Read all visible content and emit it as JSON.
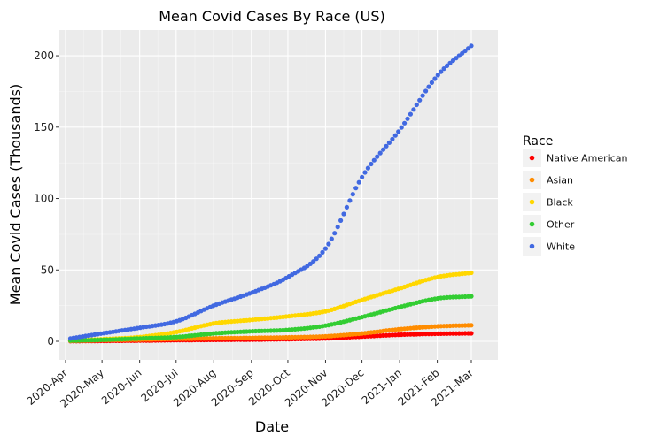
{
  "chart_data": {
    "type": "scatter",
    "title": "Mean Covid Cases By Race (US)",
    "xlabel": "Date",
    "ylabel": "Mean Covid Cases (Thousands)",
    "x_ticks": [
      "2020-Apr",
      "2020-May",
      "2020-Jun",
      "2020-Jul",
      "2020-Aug",
      "2020-Sep",
      "2020-Oct",
      "2020-Nov",
      "2020-Dec",
      "2021-Jan",
      "2021-Feb",
      "2021-Mar"
    ],
    "y_ticks": [
      0,
      50,
      100,
      150,
      200
    ],
    "ylim": [
      -13,
      218
    ],
    "grid": true,
    "legend": {
      "title": "Race",
      "position": "right"
    },
    "series": [
      {
        "name": "Native American",
        "color": "#ff0000",
        "points": [
          [
            "2020-04-05",
            0.1
          ],
          [
            "2020-05-01",
            0.3
          ],
          [
            "2020-06-01",
            0.5
          ],
          [
            "2020-07-01",
            0.8
          ],
          [
            "2020-08-01",
            1.0
          ],
          [
            "2020-09-01",
            1.2
          ],
          [
            "2020-10-01",
            1.5
          ],
          [
            "2020-11-01",
            2.0
          ],
          [
            "2020-12-01",
            3.3
          ],
          [
            "2021-01-01",
            4.6
          ],
          [
            "2021-02-01",
            5.3
          ],
          [
            "2021-03-01",
            5.6
          ]
        ]
      },
      {
        "name": "Asian",
        "color": "#ff8c00",
        "points": [
          [
            "2020-04-05",
            0.3
          ],
          [
            "2020-05-01",
            0.8
          ],
          [
            "2020-06-01",
            1.2
          ],
          [
            "2020-07-01",
            1.7
          ],
          [
            "2020-08-01",
            2.1
          ],
          [
            "2020-09-01",
            2.4
          ],
          [
            "2020-10-01",
            2.8
          ],
          [
            "2020-11-01",
            3.5
          ],
          [
            "2020-12-01",
            5.5
          ],
          [
            "2021-01-01",
            8.5
          ],
          [
            "2021-02-01",
            10.5
          ],
          [
            "2021-03-01",
            11.3
          ]
        ]
      },
      {
        "name": "Black",
        "color": "#ffd700",
        "points": [
          [
            "2020-04-05",
            0.5
          ],
          [
            "2020-05-01",
            1.5
          ],
          [
            "2020-06-01",
            3.0
          ],
          [
            "2020-07-01",
            6.5
          ],
          [
            "2020-08-01",
            12.5
          ],
          [
            "2020-09-01",
            15.0
          ],
          [
            "2020-10-01",
            17.5
          ],
          [
            "2020-11-01",
            21.0
          ],
          [
            "2020-12-01",
            29.0
          ],
          [
            "2021-01-01",
            37.0
          ],
          [
            "2021-02-01",
            45.0
          ],
          [
            "2021-03-01",
            48.0
          ]
        ]
      },
      {
        "name": "Other",
        "color": "#32cd32",
        "points": [
          [
            "2020-04-05",
            0.5
          ],
          [
            "2020-05-01",
            1.0
          ],
          [
            "2020-06-01",
            2.0
          ],
          [
            "2020-07-01",
            3.0
          ],
          [
            "2020-08-01",
            5.5
          ],
          [
            "2020-09-01",
            7.0
          ],
          [
            "2020-10-01",
            8.0
          ],
          [
            "2020-11-01",
            11.0
          ],
          [
            "2020-12-01",
            17.0
          ],
          [
            "2021-01-01",
            24.0
          ],
          [
            "2021-02-01",
            30.0
          ],
          [
            "2021-03-01",
            31.5
          ]
        ]
      },
      {
        "name": "White",
        "color": "#4169e1",
        "points": [
          [
            "2020-04-05",
            2
          ],
          [
            "2020-05-01",
            5.5
          ],
          [
            "2020-06-01",
            9.5
          ],
          [
            "2020-07-01",
            14
          ],
          [
            "2020-08-01",
            25
          ],
          [
            "2020-09-01",
            34
          ],
          [
            "2020-10-01",
            45
          ],
          [
            "2020-11-01",
            65
          ],
          [
            "2020-12-01",
            115
          ],
          [
            "2021-01-01",
            148
          ],
          [
            "2021-02-01",
            186
          ],
          [
            "2021-03-01",
            207
          ]
        ]
      }
    ]
  }
}
